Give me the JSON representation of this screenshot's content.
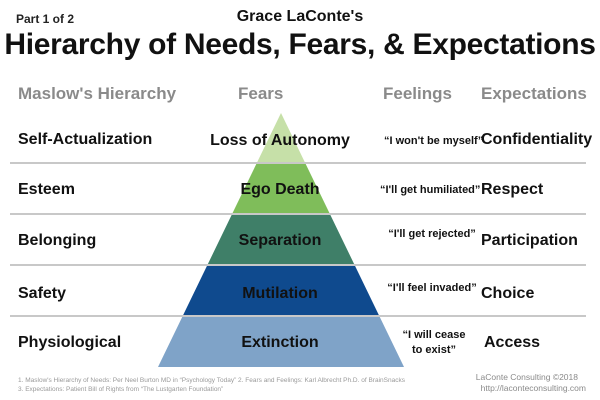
{
  "header": {
    "part": "Part 1 of 2",
    "author": "Grace LaConte's",
    "title": "Hierarchy of Needs, Fears, & Expectations"
  },
  "columns": {
    "maslow": "Maslow's Hierarchy",
    "fears": "Fears",
    "feelings": "Feelings",
    "expectations": "Expectations"
  },
  "rows": [
    {
      "need": "Self-Actualization",
      "fear": "Loss of Autonomy",
      "feeling": "“I won't be myself”",
      "expectation": "Confidentiality",
      "color": "#c6e0a8"
    },
    {
      "need": "Esteem",
      "fear": "Ego Death",
      "feeling": "“I'll get humiliated”",
      "expectation": "Respect",
      "color": "#7fbd5a"
    },
    {
      "need": "Belonging",
      "fear": "Separation",
      "feeling": "“I'll get rejected”",
      "expectation": "Participation",
      "color": "#3f7f68"
    },
    {
      "need": "Safety",
      "fear": "Mutilation",
      "feeling": "“I'll feel invaded”",
      "expectation": "Choice",
      "color": "#0f4a8e"
    },
    {
      "need": "Physiological",
      "fear": "Extinction",
      "feeling": "“I will cease",
      "feeling_line2": "to exist”",
      "expectation": "Access",
      "color": "#7fa3c8"
    }
  ],
  "footnotes": {
    "line1": "1. Maslow's Hierarchy of Needs: Per Neel Burton MD in “Psychology Today”   2. Fears and Feelings: Karl Albrecht Ph.D. of BrainSnacks",
    "line2": "3. Expectations: Patient Bill of Rights from “The Lustgarten Foundation”"
  },
  "credit": {
    "company": "LaConte Consulting ©2018",
    "url": "http://laconteconsulting.com"
  }
}
